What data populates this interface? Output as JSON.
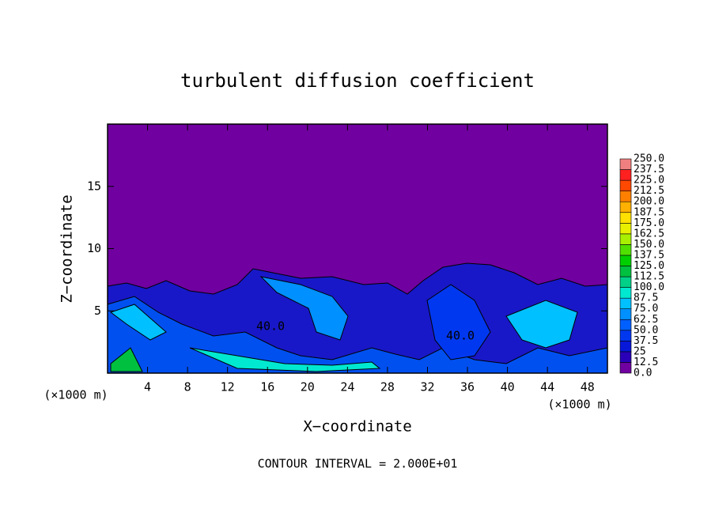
{
  "chart_data": {
    "type": "contour",
    "title": "turbulent diffusion coefficient",
    "x_label": "X−coordinate",
    "y_label": "Z−coordinate",
    "x_unit_left": "(×1000 m)",
    "x_unit_right": "(×1000 m)",
    "footer": "CONTOUR INTERVAL = 2.000E+01",
    "xlim": [
      0,
      50
    ],
    "xticks": [
      4,
      8,
      12,
      16,
      20,
      24,
      28,
      32,
      36,
      40,
      44,
      48
    ],
    "ylim": [
      0,
      20
    ],
    "yticks": [
      5,
      10,
      15
    ],
    "contour_labels": [
      "40.0",
      "40.0"
    ],
    "levels": [
      {
        "value": 0,
        "label": "0.0"
      },
      12.5,
      25.0,
      37.5,
      {
        "value": 50,
        "label": "50.0"
      },
      62.5,
      {
        "value": 75,
        "label": "75.0"
      },
      87.5,
      {
        "value": 100,
        "label": "100.0"
      },
      112.5,
      {
        "value": 125,
        "label": "125.0"
      },
      137.5,
      {
        "value": 150,
        "label": "150.0"
      },
      162.5,
      {
        "value": 175,
        "label": "175.0"
      },
      187.5,
      {
        "value": 200,
        "label": "200.0"
      },
      212.5,
      {
        "value": 225,
        "label": "225.0"
      },
      237.5,
      {
        "value": 250,
        "label": "250.0"
      }
    ],
    "colors": [
      "#7000a0",
      "#2a00b8",
      "#0818d8",
      "#0038f0",
      "#0060ff",
      "#0090ff",
      "#00c0ff",
      "#00e8d0",
      "#00d088",
      "#00c040",
      "#00d000",
      "#50e000",
      "#a8f000",
      "#e8f000",
      "#ffe000",
      "#ffb000",
      "#ff8000",
      "#ff4800",
      "#ff2020",
      "#f08080"
    ]
  }
}
